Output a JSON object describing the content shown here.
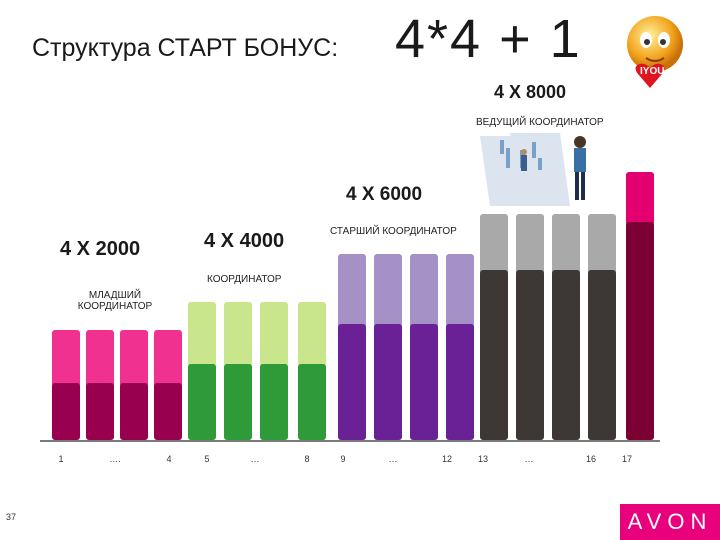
{
  "title": {
    "text": "Структура СТАРТ БОНУС:",
    "formula": "4*4 + 1"
  },
  "levels": [
    {
      "amount": "4 X 2000",
      "role": "МЛАДШИЙ\nКООРДИНАТОР"
    },
    {
      "amount": "4 X 4000",
      "role": "КООРДИНАТОР"
    },
    {
      "amount": "4 X 6000",
      "role": "СТАРШИЙ КООРДИНАТОР"
    },
    {
      "amount": "4 X 8000",
      "role": "ВЕДУЩИЙ КООРДИНАТОР"
    }
  ],
  "ticks": [
    "1",
    "….",
    "4",
    "5",
    "…",
    "8",
    "9",
    "…",
    "12",
    "13",
    "…",
    "16",
    "17"
  ],
  "footer": {
    "page": "37",
    "brand": "AVON"
  },
  "emoji_label": "IYOU",
  "colors": {
    "pink_light": "#f0318f",
    "pink_dark": "#98004f",
    "green_light": "#c9e68c",
    "green_dark": "#2f9a38",
    "purple_light": "#a591c6",
    "purple_dark": "#6a2195",
    "gray_light": "#a9a9a9",
    "gray_dark": "#3d3836",
    "magenta_light": "#e4006f",
    "magenta_dark": "#7d0035"
  }
}
